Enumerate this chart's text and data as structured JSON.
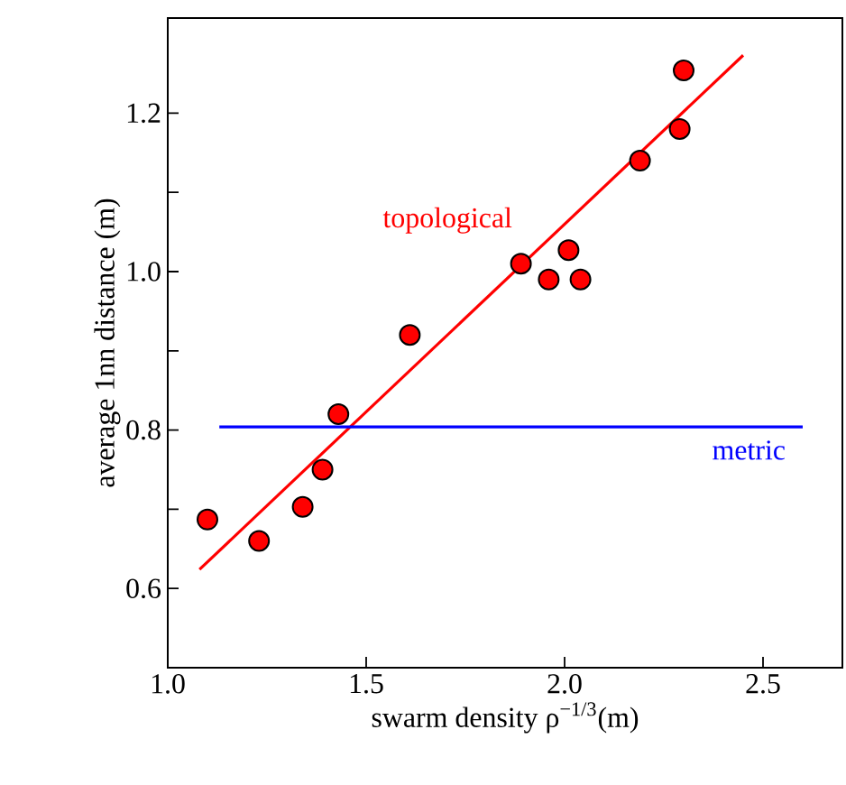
{
  "chart_data": {
    "type": "scatter",
    "xlabel": "swarm density ρ$^{−1/3}$(m)",
    "ylabel": "average 1nn distance (m)",
    "xlim": [
      1.0,
      2.7
    ],
    "ylim": [
      0.5,
      1.32
    ],
    "xticks": [
      {
        "value": 1.0,
        "label": "1.0"
      },
      {
        "value": 1.5,
        "label": "1.5"
      },
      {
        "value": 2.0,
        "label": "2.0"
      },
      {
        "value": 2.5,
        "label": "2.5"
      }
    ],
    "yticks": [
      {
        "value": 0.6,
        "label": "0.6"
      },
      {
        "value": 0.7,
        "label": null
      },
      {
        "value": 0.8,
        "label": "0.8"
      },
      {
        "value": 0.9,
        "label": null
      },
      {
        "value": 1.0,
        "label": "1.0"
      },
      {
        "value": 1.1,
        "label": null
      },
      {
        "value": 1.2,
        "label": "1.2"
      }
    ],
    "series": [
      {
        "color": "#ff0000",
        "marker": "circle",
        "x": [
          1.1,
          1.23,
          1.34,
          1.39,
          1.43,
          1.61,
          1.89,
          1.96,
          2.01,
          2.04,
          2.19,
          2.29,
          2.3
        ],
        "values": [
          0.687,
          0.66,
          0.703,
          0.75,
          0.82,
          0.92,
          1.01,
          0.99,
          1.027,
          0.99,
          1.14,
          1.18,
          1.254
        ]
      },
      {
        "type": "line",
        "name": "topological",
        "color": "#ff0000",
        "marker": "none",
        "line_style": "solid",
        "x": [
          1.08,
          2.45
        ],
        "values": [
          0.624,
          1.273
        ]
      },
      {
        "type": "line",
        "name": "metric",
        "color": "#0000ff",
        "marker": "none",
        "line_style": "solid",
        "x": [
          1.13,
          2.6
        ],
        "values": [
          0.804,
          0.804
        ]
      }
    ]
  }
}
